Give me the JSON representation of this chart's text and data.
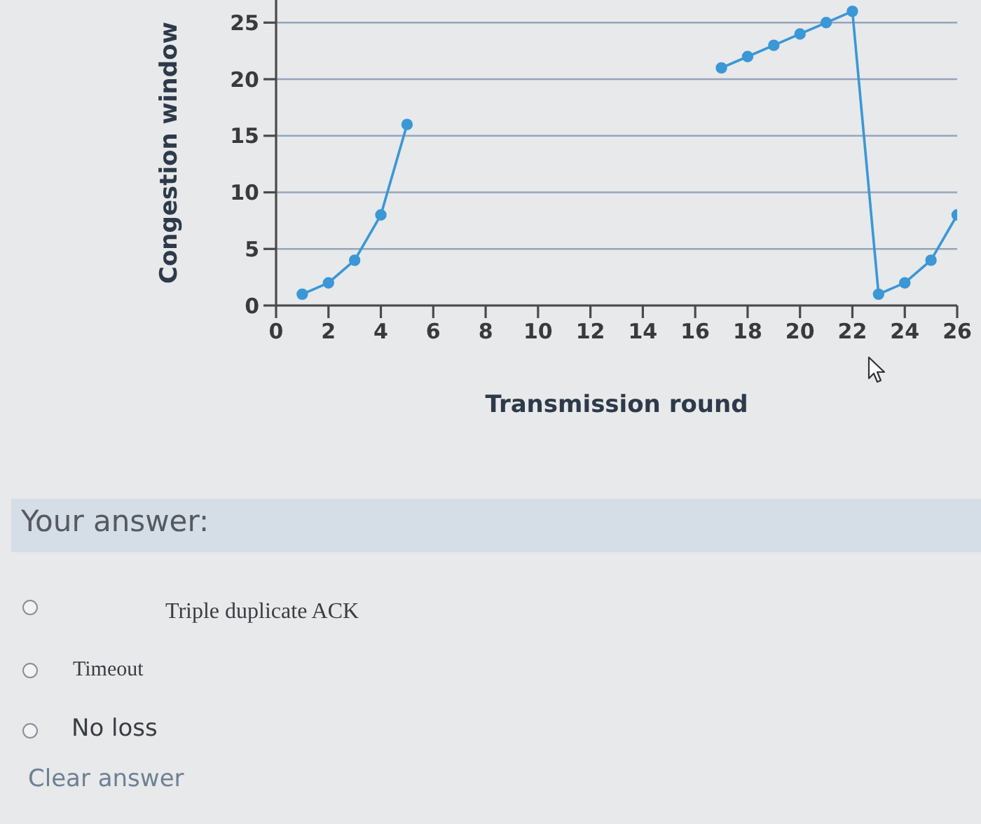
{
  "chart_data": {
    "type": "line",
    "xlabel": "Transmission round",
    "ylabel": "Congestion window",
    "x": [
      1,
      2,
      3,
      4,
      5,
      6,
      7,
      8,
      9,
      10,
      11,
      12,
      13,
      14,
      15,
      16,
      17,
      18,
      19,
      20,
      21,
      22,
      23,
      24,
      25,
      26
    ],
    "series": [
      {
        "color": "#3b97d6",
        "values": [
          1,
          2,
          4,
          8,
          16,
          null,
          null,
          null,
          null,
          null,
          null,
          null,
          null,
          null,
          null,
          null,
          21,
          22,
          23,
          24,
          25,
          26,
          1,
          2,
          4,
          8
        ]
      }
    ],
    "xlim": [
      0,
      26
    ],
    "xticks": [
      0,
      2,
      4,
      6,
      8,
      10,
      12,
      14,
      16,
      18,
      20,
      22,
      24,
      26
    ],
    "ylim": [
      0,
      27
    ],
    "yticks": [
      0,
      5,
      10,
      15,
      20,
      25
    ],
    "grid": "y",
    "marker": "circle",
    "line_style": "solid",
    "annotations": [
      "Your answer:",
      "Triple duplicate ACK",
      "Timeout",
      "No loss",
      "Clear answer"
    ]
  }
}
